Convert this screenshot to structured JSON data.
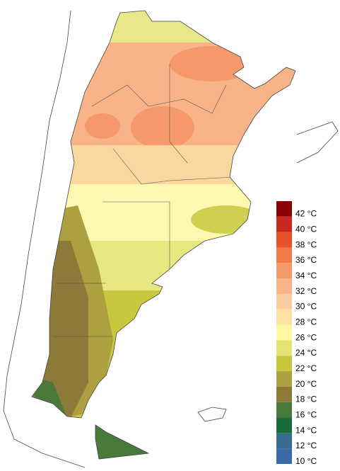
{
  "legend": {
    "items": [
      {
        "label": "42 °C",
        "color": "#8b0000"
      },
      {
        "label": "40 °C",
        "color": "#c8281e"
      },
      {
        "label": "38 °C",
        "color": "#e8502a"
      },
      {
        "label": "36 °C",
        "color": "#f27a48"
      },
      {
        "label": "34 °C",
        "color": "#f5986a"
      },
      {
        "label": "32 °C",
        "color": "#f8b488"
      },
      {
        "label": "30 °C",
        "color": "#fbcca0"
      },
      {
        "label": "28 °C",
        "color": "#fde2a2"
      },
      {
        "label": "26 °C",
        "color": "#fdf8a0"
      },
      {
        "label": "24 °C",
        "color": "#e4e472"
      },
      {
        "label": "22 °C",
        "color": "#c8c83e"
      },
      {
        "label": "20 °C",
        "color": "#ada040"
      },
      {
        "label": "18 °C",
        "color": "#8e7a38"
      },
      {
        "label": "16 °C",
        "color": "#4a7a3a"
      },
      {
        "label": "14 °C",
        "color": "#1a6a3a"
      },
      {
        "label": "12 °C",
        "color": "#3a6c90"
      },
      {
        "label": "10 °C",
        "color": "#3a6aa8"
      }
    ]
  }
}
